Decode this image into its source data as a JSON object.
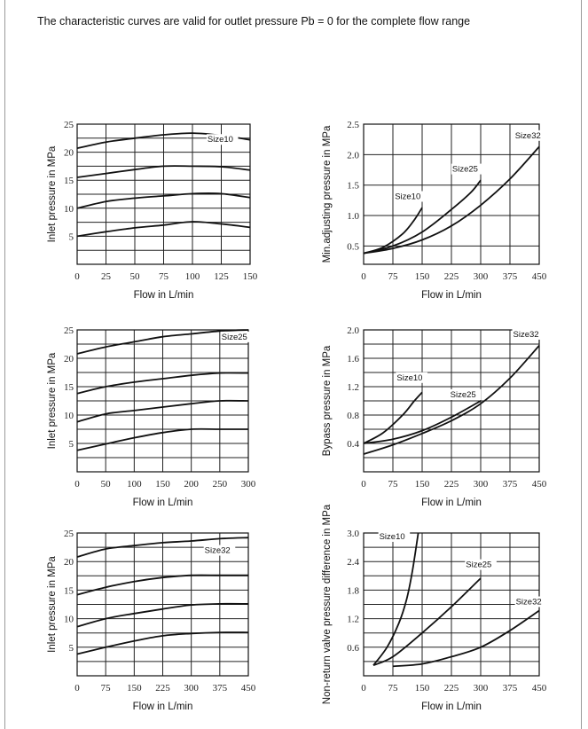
{
  "heading": "The characteristic curves are valid for outlet pressure Pb = 0 for the complete flow range",
  "chart_data": [
    {
      "type": "line",
      "xlabel": "Flow in L/min",
      "ylabel": "Inlet pressure in MPa",
      "xticks": [
        "0",
        "25",
        "50",
        "75",
        "100",
        "125",
        "150"
      ],
      "yticks": [
        "5",
        "10",
        "15",
        "20",
        "25"
      ],
      "xlim": [
        0,
        150
      ],
      "ylim": [
        0,
        25
      ],
      "xgrid": [
        0,
        25,
        50,
        75,
        100,
        125,
        150
      ],
      "ygrid": [
        0,
        2.5,
        5,
        7.5,
        10,
        12.5,
        15,
        17.5,
        20,
        22.5,
        25
      ],
      "series": [
        {
          "name": "Size10",
          "x": [
            0,
            25,
            50,
            75,
            100,
            125,
            150
          ],
          "y": [
            20.7,
            21.8,
            22.5,
            23.1,
            23.4,
            23.0,
            22.2
          ],
          "label_at": [
            113,
            21.8
          ]
        },
        {
          "x": [
            0,
            25,
            50,
            75,
            100,
            125,
            150
          ],
          "y": [
            15.5,
            16.2,
            16.9,
            17.5,
            17.5,
            17.4,
            16.8
          ]
        },
        {
          "x": [
            0,
            25,
            50,
            75,
            100,
            125,
            150
          ],
          "y": [
            10.0,
            11.2,
            11.8,
            12.2,
            12.6,
            12.6,
            11.9
          ]
        },
        {
          "x": [
            0,
            25,
            50,
            75,
            100,
            125,
            150
          ],
          "y": [
            5.0,
            5.8,
            6.5,
            7.0,
            7.6,
            7.2,
            6.6
          ]
        }
      ]
    },
    {
      "type": "line",
      "xlabel": "Flow in L/min",
      "ylabel": "Min.adjusting pressure in MPa",
      "xticks": [
        "0",
        "75",
        "150",
        "225",
        "300",
        "375",
        "450"
      ],
      "yticks": [
        "0.5",
        "1.0",
        "1.5",
        "2.0",
        "2.5"
      ],
      "xlim": [
        0,
        450
      ],
      "ylim": [
        0.2,
        2.5
      ],
      "xgrid": [
        0,
        75,
        150,
        225,
        300,
        375,
        450
      ],
      "ygrid": [
        0.5,
        1.0,
        1.5,
        2.0,
        2.5
      ],
      "series": [
        {
          "name": "Size10",
          "x": [
            0,
            50,
            100,
            130,
            150
          ],
          "y": [
            0.38,
            0.48,
            0.7,
            0.93,
            1.13
          ],
          "label_at": [
            80,
            1.27
          ]
        },
        {
          "name": "Size25",
          "x": [
            0,
            75,
            150,
            225,
            275,
            300
          ],
          "y": [
            0.38,
            0.5,
            0.73,
            1.1,
            1.38,
            1.58
          ],
          "label_at": [
            227,
            1.72
          ]
        },
        {
          "name": "Size32",
          "x": [
            0,
            75,
            150,
            225,
            300,
            375,
            450
          ],
          "y": [
            0.38,
            0.46,
            0.6,
            0.83,
            1.17,
            1.6,
            2.13
          ],
          "label_at": [
            388,
            2.27
          ]
        }
      ]
    },
    {
      "type": "line",
      "xlabel": "Flow in L/min",
      "ylabel": "Inlet pressure in MPa",
      "xticks": [
        "0",
        "50",
        "100",
        "150",
        "200",
        "250",
        "300"
      ],
      "yticks": [
        "5",
        "10",
        "15",
        "20",
        "25"
      ],
      "xlim": [
        0,
        300
      ],
      "ylim": [
        0,
        25
      ],
      "xgrid": [
        0,
        50,
        100,
        150,
        200,
        250,
        300
      ],
      "ygrid": [
        0,
        2.5,
        5,
        7.5,
        10,
        12.5,
        15,
        17.5,
        20,
        22.5,
        25
      ],
      "series": [
        {
          "name": "Size25",
          "x": [
            0,
            50,
            100,
            150,
            200,
            250,
            300
          ],
          "y": [
            20.8,
            22.0,
            22.9,
            23.8,
            24.3,
            24.8,
            25.0
          ],
          "label_at": [
            253,
            23.3
          ]
        },
        {
          "x": [
            0,
            50,
            100,
            150,
            200,
            250,
            300
          ],
          "y": [
            13.8,
            15.0,
            15.8,
            16.4,
            17.0,
            17.4,
            17.4
          ]
        },
        {
          "x": [
            0,
            50,
            100,
            150,
            200,
            250,
            300
          ],
          "y": [
            8.8,
            10.2,
            10.8,
            11.4,
            12.0,
            12.5,
            12.5
          ]
        },
        {
          "x": [
            0,
            50,
            100,
            150,
            200,
            250,
            300
          ],
          "y": [
            3.8,
            4.9,
            6.0,
            6.9,
            7.5,
            7.5,
            7.5
          ]
        }
      ]
    },
    {
      "type": "line",
      "xlabel": "Flow in L/min",
      "ylabel": "Bypass pressure in MPa",
      "xticks": [
        "0",
        "75",
        "150",
        "225",
        "300",
        "375",
        "450"
      ],
      "yticks": [
        "0.4",
        "0.8",
        "1.2",
        "1.6",
        "2.0"
      ],
      "xlim": [
        0,
        450
      ],
      "ylim": [
        0,
        2.0
      ],
      "xgrid": [
        0,
        75,
        150,
        225,
        300,
        375,
        450
      ],
      "ygrid": [
        0.2,
        0.4,
        0.6,
        0.8,
        1.0,
        1.2,
        1.4,
        1.6,
        1.8,
        2.0
      ],
      "series": [
        {
          "name": "Size10",
          "x": [
            0,
            50,
            100,
            130,
            150
          ],
          "y": [
            0.4,
            0.55,
            0.8,
            1.0,
            1.12
          ],
          "label_at": [
            85,
            1.29
          ]
        },
        {
          "name": "Size25",
          "x": [
            0,
            75,
            150,
            225,
            300
          ],
          "y": [
            0.4,
            0.46,
            0.58,
            0.77,
            1.0
          ],
          "label_at": [
            222,
            1.05
          ]
        },
        {
          "name": "Size32",
          "x": [
            0,
            75,
            150,
            225,
            300,
            375,
            450
          ],
          "y": [
            0.25,
            0.38,
            0.54,
            0.72,
            0.96,
            1.32,
            1.78
          ],
          "label_at": [
            383,
            1.9
          ]
        }
      ]
    },
    {
      "type": "line",
      "xlabel": "Flow in L/min",
      "ylabel": "Inlet pressure in MPa",
      "xticks": [
        "0",
        "75",
        "150",
        "225",
        "300",
        "375",
        "450"
      ],
      "yticks": [
        "5",
        "10",
        "15",
        "20",
        "25"
      ],
      "xlim": [
        0,
        450
      ],
      "ylim": [
        0,
        25
      ],
      "xgrid": [
        0,
        75,
        150,
        225,
        300,
        375,
        450
      ],
      "ygrid": [
        0,
        2.5,
        5,
        7.5,
        10,
        12.5,
        15,
        17.5,
        20,
        22.5,
        25
      ],
      "series": [
        {
          "name": "Size32",
          "x": [
            0,
            75,
            150,
            225,
            300,
            375,
            450
          ],
          "y": [
            20.8,
            22.2,
            22.8,
            23.3,
            23.6,
            24.0,
            24.2
          ],
          "label_at": [
            335,
            21.5
          ]
        },
        {
          "x": [
            0,
            75,
            150,
            225,
            300,
            375,
            450
          ],
          "y": [
            14.2,
            15.5,
            16.5,
            17.2,
            17.6,
            17.6,
            17.6
          ]
        },
        {
          "x": [
            0,
            75,
            150,
            225,
            300,
            375,
            450
          ],
          "y": [
            8.6,
            10.0,
            10.9,
            11.7,
            12.4,
            12.6,
            12.6
          ]
        },
        {
          "x": [
            0,
            75,
            150,
            225,
            300,
            375,
            450
          ],
          "y": [
            3.8,
            5.0,
            6.1,
            7.0,
            7.4,
            7.6,
            7.6
          ]
        }
      ]
    },
    {
      "type": "line",
      "xlabel": "Flow in L/min",
      "ylabel": "Non-return valve pressure difference in MPa",
      "xticks": [
        "0",
        "75",
        "150",
        "225",
        "300",
        "375",
        "450"
      ],
      "yticks": [
        "0.6",
        "1.2",
        "1.8",
        "2.4",
        "3.0"
      ],
      "xlim": [
        0,
        450
      ],
      "ylim": [
        0,
        3.0
      ],
      "xgrid": [
        0,
        75,
        150,
        225,
        300,
        375,
        450
      ],
      "ygrid": [
        0.3,
        0.6,
        0.9,
        1.2,
        1.5,
        1.8,
        2.1,
        2.4,
        2.7,
        3.0
      ],
      "series": [
        {
          "name": "Size10",
          "x": [
            25,
            60,
            90,
            110,
            125,
            140
          ],
          "y": [
            0.22,
            0.6,
            1.1,
            1.6,
            2.2,
            3.0
          ],
          "label_at": [
            40,
            2.87
          ]
        },
        {
          "name": "Size25",
          "x": [
            25,
            75,
            150,
            225,
            300
          ],
          "y": [
            0.22,
            0.4,
            0.9,
            1.45,
            2.05
          ],
          "label_at": [
            262,
            2.28
          ]
        },
        {
          "name": "Size32",
          "x": [
            75,
            150,
            225,
            300,
            375,
            450
          ],
          "y": [
            0.2,
            0.25,
            0.4,
            0.6,
            0.95,
            1.37
          ],
          "label_at": [
            390,
            1.5
          ]
        }
      ]
    }
  ]
}
